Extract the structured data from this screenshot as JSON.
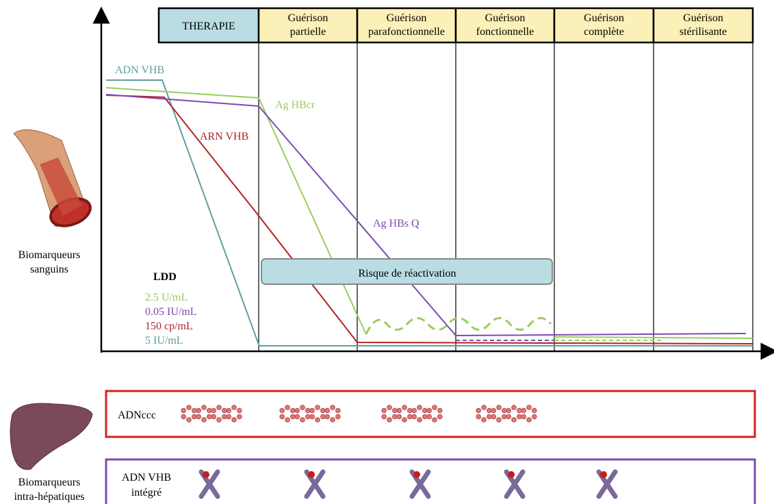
{
  "header": {
    "cells": [
      {
        "lines": [
          "THERAPIE"
        ]
      },
      {
        "lines": [
          "Guérison",
          "partielle"
        ]
      },
      {
        "lines": [
          "Guérison",
          "parafonctionnelle"
        ]
      },
      {
        "lines": [
          "Guérison",
          "fonctionnelle"
        ]
      },
      {
        "lines": [
          "Guérison",
          "complète"
        ]
      },
      {
        "lines": [
          "Guérison",
          "stérilisante"
        ]
      }
    ]
  },
  "curves": {
    "adn_vhb": "ADN VHB",
    "ag_hbcr": "Ag HBcr",
    "arn_vhb": "ARN VHB",
    "ag_hbs_q": "Ag HBs Q"
  },
  "risk": "Risque de réactivation",
  "ldd": {
    "title": "LDD",
    "items": [
      "2.5 U/mL",
      "0.05 IU/mL",
      "150 cp/mL",
      "5 IU/mL"
    ]
  },
  "side": {
    "blood": [
      "Biomarqueurs",
      "sanguins"
    ],
    "liver": [
      "Biomarqueurs",
      "intra-hépatiques"
    ]
  },
  "boxes": {
    "cccdna": [
      "ADNccc"
    ],
    "integrated": [
      "ADN VHB",
      "intégré"
    ]
  }
}
